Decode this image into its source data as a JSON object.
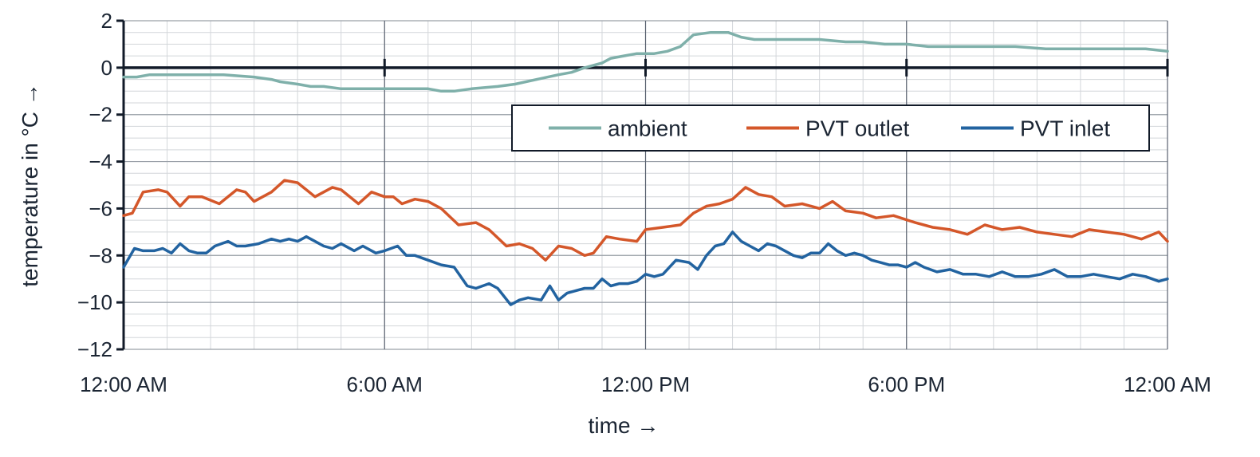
{
  "chart_data": {
    "type": "line",
    "xlabel": "time →",
    "ylabel": "temperature in °C →",
    "x_ticks": [
      "12:00 AM",
      "6:00 AM",
      "12:00 PM",
      "6:00 PM",
      "12:00 AM"
    ],
    "x_unit": "hours since start of axis",
    "xlim": [
      0,
      24
    ],
    "ylim": [
      -12,
      2
    ],
    "y_ticks": [
      2,
      0,
      -2,
      -4,
      -6,
      -8,
      -10,
      -12
    ],
    "grid": true,
    "legend_position": "top-right",
    "series": [
      {
        "name": "ambient",
        "color": "#7fb0aa",
        "x": [
          0,
          0.3,
          0.6,
          1,
          2,
          2.3,
          3,
          3.4,
          3.6,
          4,
          4.3,
          4.6,
          5,
          5.6,
          6,
          6.6,
          7,
          7.3,
          7.6,
          8,
          8.6,
          9,
          9.5,
          10,
          10.3,
          10.6,
          11,
          11.2,
          11.5,
          11.8,
          12.2,
          12.5,
          12.8,
          13.1,
          13.5,
          13.9,
          14.2,
          14.5,
          15,
          15.6,
          16,
          16.6,
          17,
          17.5,
          18,
          18.5,
          19,
          19.8,
          20.5,
          21.2,
          22,
          23.5,
          24
        ],
        "y": [
          -0.4,
          -0.4,
          -0.3,
          -0.3,
          -0.3,
          -0.3,
          -0.4,
          -0.5,
          -0.6,
          -0.7,
          -0.8,
          -0.8,
          -0.9,
          -0.9,
          -0.9,
          -0.9,
          -0.9,
          -1.0,
          -1.0,
          -0.9,
          -0.8,
          -0.7,
          -0.5,
          -0.3,
          -0.2,
          0.0,
          0.2,
          0.4,
          0.5,
          0.6,
          0.6,
          0.7,
          0.9,
          1.4,
          1.5,
          1.5,
          1.3,
          1.2,
          1.2,
          1.2,
          1.2,
          1.1,
          1.1,
          1.0,
          1.0,
          0.9,
          0.9,
          0.9,
          0.9,
          0.8,
          0.8,
          0.8,
          0.7
        ]
      },
      {
        "name": "PVT outlet",
        "color": "#d4572a",
        "x": [
          0,
          0.2,
          0.45,
          0.8,
          1,
          1.3,
          1.5,
          1.8,
          2.2,
          2.6,
          2.8,
          3,
          3.4,
          3.7,
          4,
          4.4,
          4.8,
          5,
          5.4,
          5.7,
          6,
          6.2,
          6.4,
          6.7,
          7,
          7.3,
          7.7,
          8.1,
          8.4,
          8.8,
          9.1,
          9.4,
          9.7,
          10,
          10.3,
          10.6,
          10.8,
          11.1,
          11.4,
          11.8,
          12,
          12.4,
          12.8,
          13.1,
          13.4,
          13.7,
          14,
          14.3,
          14.6,
          14.9,
          15.2,
          15.6,
          16,
          16.3,
          16.6,
          17,
          17.3,
          17.7,
          18.2,
          18.6,
          19,
          19.4,
          19.8,
          20.2,
          20.6,
          21,
          21.4,
          21.8,
          22.2,
          22.6,
          23,
          23.4,
          23.8,
          24
        ],
        "y": [
          -6.3,
          -6.2,
          -5.3,
          -5.2,
          -5.3,
          -5.9,
          -5.5,
          -5.5,
          -5.8,
          -5.2,
          -5.3,
          -5.7,
          -5.3,
          -4.8,
          -4.9,
          -5.5,
          -5.1,
          -5.2,
          -5.8,
          -5.3,
          -5.5,
          -5.5,
          -5.8,
          -5.6,
          -5.7,
          -6.0,
          -6.7,
          -6.6,
          -6.9,
          -7.6,
          -7.5,
          -7.7,
          -8.2,
          -7.6,
          -7.7,
          -8.0,
          -7.9,
          -7.2,
          -7.3,
          -7.4,
          -6.9,
          -6.8,
          -6.7,
          -6.2,
          -5.9,
          -5.8,
          -5.6,
          -5.1,
          -5.4,
          -5.5,
          -5.9,
          -5.8,
          -6.0,
          -5.7,
          -6.1,
          -6.2,
          -6.4,
          -6.3,
          -6.6,
          -6.8,
          -6.9,
          -7.1,
          -6.7,
          -6.9,
          -6.8,
          -7.0,
          -7.1,
          -7.2,
          -6.9,
          -7.0,
          -7.1,
          -7.3,
          -7.0,
          -7.4
        ]
      },
      {
        "name": "PVT inlet",
        "color": "#2263a0",
        "x": [
          0,
          0.25,
          0.45,
          0.7,
          0.9,
          1.1,
          1.3,
          1.5,
          1.7,
          1.9,
          2.1,
          2.4,
          2.6,
          2.8,
          3.1,
          3.4,
          3.6,
          3.8,
          4,
          4.2,
          4.4,
          4.6,
          4.8,
          5,
          5.3,
          5.5,
          5.8,
          6,
          6.3,
          6.5,
          6.7,
          7,
          7.3,
          7.6,
          7.9,
          8.1,
          8.4,
          8.6,
          8.9,
          9.1,
          9.3,
          9.6,
          9.8,
          10,
          10.2,
          10.4,
          10.6,
          10.8,
          11,
          11.2,
          11.4,
          11.6,
          11.8,
          12,
          12.2,
          12.4,
          12.7,
          13,
          13.2,
          13.4,
          13.6,
          13.8,
          14,
          14.2,
          14.4,
          14.6,
          14.8,
          15,
          15.2,
          15.4,
          15.6,
          15.8,
          16,
          16.2,
          16.4,
          16.6,
          16.8,
          17,
          17.2,
          17.4,
          17.6,
          17.8,
          18,
          18.2,
          18.4,
          18.7,
          19,
          19.3,
          19.6,
          19.9,
          20.2,
          20.5,
          20.8,
          21.1,
          21.4,
          21.7,
          22,
          22.3,
          22.6,
          22.9,
          23.2,
          23.5,
          23.8,
          24
        ],
        "y": [
          -8.5,
          -7.7,
          -7.8,
          -7.8,
          -7.7,
          -7.9,
          -7.5,
          -7.8,
          -7.9,
          -7.9,
          -7.6,
          -7.4,
          -7.6,
          -7.6,
          -7.5,
          -7.3,
          -7.4,
          -7.3,
          -7.4,
          -7.2,
          -7.4,
          -7.6,
          -7.7,
          -7.5,
          -7.8,
          -7.6,
          -7.9,
          -7.8,
          -7.6,
          -8.0,
          -8.0,
          -8.2,
          -8.4,
          -8.5,
          -9.3,
          -9.4,
          -9.2,
          -9.4,
          -10.1,
          -9.9,
          -9.8,
          -9.9,
          -9.3,
          -9.9,
          -9.6,
          -9.5,
          -9.4,
          -9.4,
          -9.0,
          -9.3,
          -9.2,
          -9.2,
          -9.1,
          -8.8,
          -8.9,
          -8.8,
          -8.2,
          -8.3,
          -8.6,
          -8.0,
          -7.6,
          -7.5,
          -7.0,
          -7.4,
          -7.6,
          -7.8,
          -7.5,
          -7.6,
          -7.8,
          -8.0,
          -8.1,
          -7.9,
          -7.9,
          -7.5,
          -7.8,
          -8.0,
          -7.9,
          -8.0,
          -8.2,
          -8.3,
          -8.4,
          -8.4,
          -8.5,
          -8.3,
          -8.5,
          -8.7,
          -8.6,
          -8.8,
          -8.8,
          -8.9,
          -8.7,
          -8.9,
          -8.9,
          -8.8,
          -8.6,
          -8.9,
          -8.9,
          -8.8,
          -8.9,
          -9.0,
          -8.8,
          -8.9,
          -9.1,
          -9.0
        ]
      }
    ]
  }
}
